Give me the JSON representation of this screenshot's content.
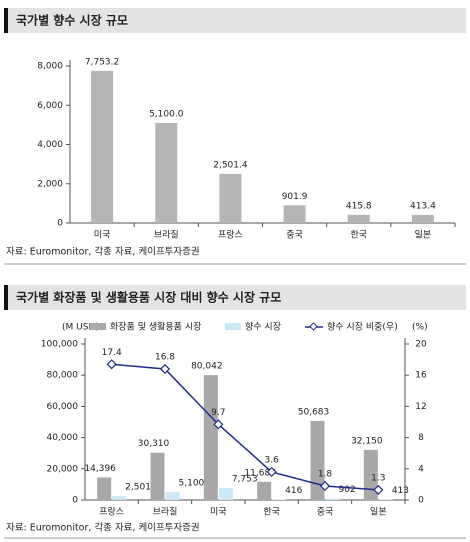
{
  "chart_data": [
    {
      "type": "bar",
      "title": "국가별 향수 시장 규모",
      "categories": [
        "미국",
        "브라질",
        "프랑스",
        "중국",
        "한국",
        "일본"
      ],
      "values": [
        7753.2,
        5100.0,
        2501.4,
        901.9,
        415.8,
        413.4
      ],
      "value_labels": [
        "7,753.2",
        "5,100.0",
        "2,501.4",
        "901.9",
        "415.8",
        "413.4"
      ],
      "color": "#b5b5b5",
      "ylim": [
        0,
        8000
      ],
      "yticks": [
        0,
        {
          "value": 2000,
          "label": "2,000"
        },
        {
          "value": 4000,
          "label": "4,000"
        },
        {
          "value": 6000,
          "label": "6,000"
        },
        {
          "value": 8000,
          "label": "8,000"
        }
      ],
      "source": "자료: Euromonitor, 각종 자료, 케이프투자증권"
    },
    {
      "type": "combo",
      "title": "국가별 화장품 및 생활용품 시장 대비 향수 시장 규모",
      "y_label": "(M USD)",
      "y2_label": "(%)",
      "categories": [
        "프랑스",
        "브라질",
        "미국",
        "한국",
        "중국",
        "일본"
      ],
      "series": [
        {
          "name": "화장품 및 생활용품 시장",
          "type": "bar",
          "color": "#a8a8a8",
          "values": [
            14396,
            30310,
            80042,
            11687,
            50683,
            32150
          ],
          "value_labels": [
            "14,396",
            "30,310",
            "80,042",
            "11,687",
            "50,683",
            "32,150"
          ]
        },
        {
          "name": "향수 시장",
          "type": "bar",
          "color": "#cce9f7",
          "values": [
            2501,
            5100,
            7753,
            416,
            902,
            413
          ],
          "value_labels": [
            "2,501",
            "5,100",
            "7,753",
            "416",
            "902",
            "413"
          ]
        },
        {
          "name": "향수 시장 비중(우)",
          "type": "line",
          "axis": "y2",
          "color": "#1f2d8a",
          "values": [
            17.4,
            16.8,
            9.7,
            3.6,
            1.8,
            1.3
          ]
        }
      ],
      "ylim": [
        0,
        100000
      ],
      "yticks": [
        0,
        {
          "value": 20000,
          "label": "20,000"
        },
        {
          "value": 40000,
          "label": "40,000"
        },
        {
          "value": 60000,
          "label": "60,000"
        },
        {
          "value": 80000,
          "label": "80,000"
        },
        {
          "value": 100000,
          "label": "100,000"
        }
      ],
      "y2lim": [
        0,
        20
      ],
      "y2ticks": [
        0,
        4,
        8,
        12,
        16,
        20
      ],
      "source": "자료: Euromonitor, 각종 자료, 케이프투자증권"
    }
  ]
}
